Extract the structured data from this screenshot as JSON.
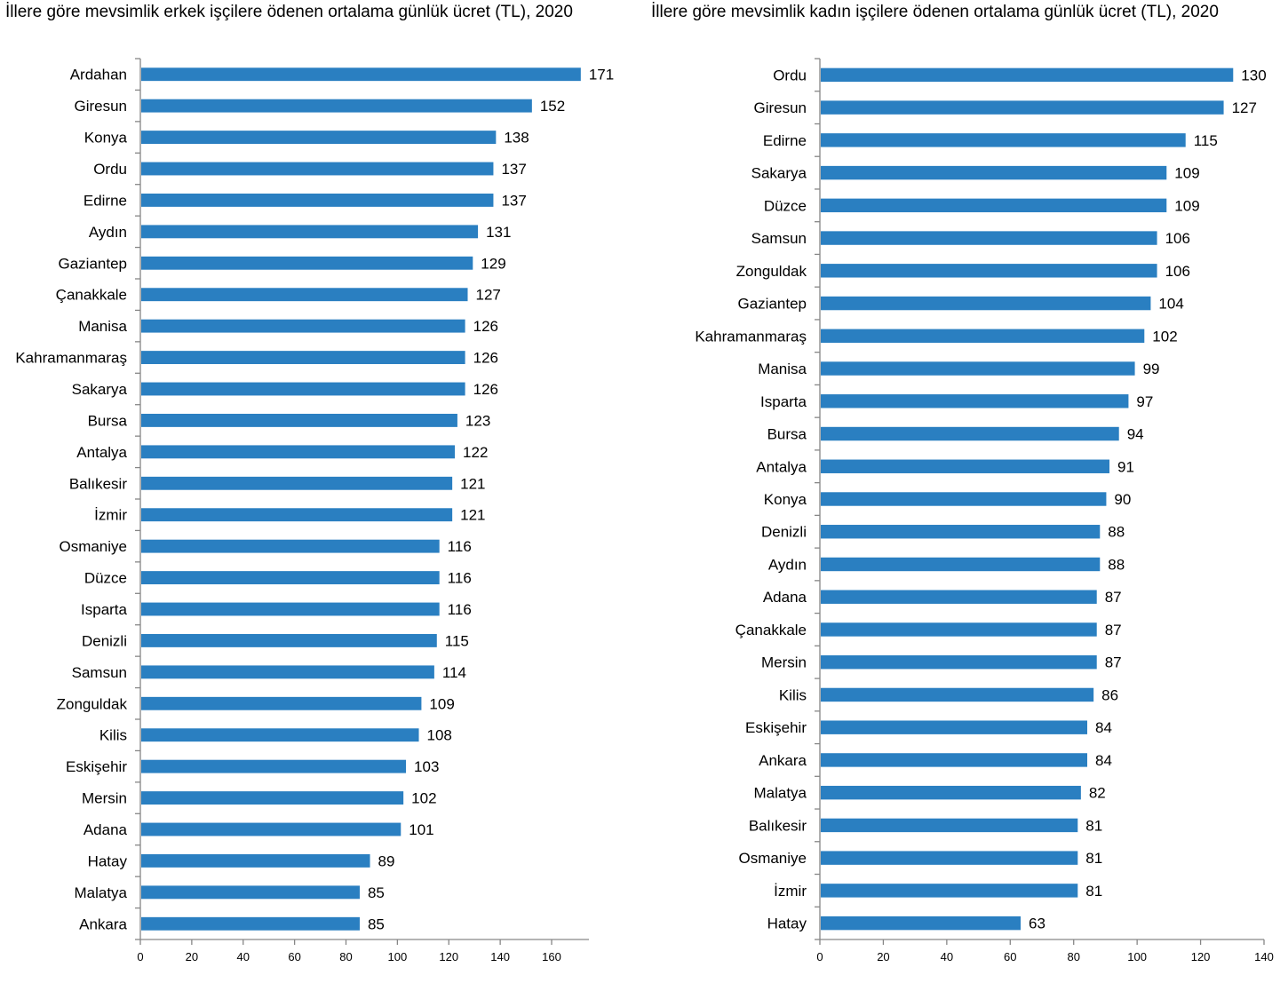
{
  "chart_data": [
    {
      "type": "bar",
      "orientation": "horizontal",
      "title": "İllere göre mevsimlik erkek işçilere ödenen ortalama günlük ücret (TL), 2020",
      "xlabel": "",
      "ylabel": "",
      "categories": [
        "Ardahan",
        "Giresun",
        "Konya",
        "Ordu",
        "Edirne",
        "Aydın",
        "Gaziantep",
        "Çanakkale",
        "Manisa",
        "Kahramanmaraş",
        "Sakarya",
        "Bursa",
        "Antalya",
        "Balıkesir",
        "İzmir",
        "Osmaniye",
        "Düzce",
        "Isparta",
        "Denizli",
        "Samsun",
        "Zonguldak",
        "Kilis",
        "Eskişehir",
        "Mersin",
        "Adana",
        "Hatay",
        "Malatya",
        "Ankara"
      ],
      "values": [
        171,
        152,
        138,
        137,
        137,
        131,
        129,
        127,
        126,
        126,
        126,
        123,
        122,
        121,
        121,
        116,
        116,
        116,
        115,
        114,
        109,
        108,
        103,
        102,
        101,
        89,
        85,
        85
      ],
      "xlim": [
        0,
        175
      ],
      "xticks": [
        0,
        20,
        40,
        60,
        80,
        100,
        120,
        140,
        160
      ],
      "color": "#2a7fc1",
      "grid": false,
      "legend": "none",
      "data_labels": true
    },
    {
      "type": "bar",
      "orientation": "horizontal",
      "title": "İllere göre mevsimlik kadın işçilere ödenen ortalama günlük ücret (TL), 2020",
      "xlabel": "",
      "ylabel": "",
      "categories": [
        "Ordu",
        "Giresun",
        "Edirne",
        "Sakarya",
        "Düzce",
        "Samsun",
        "Zonguldak",
        "Gaziantep",
        "Kahramanmaraş",
        "Manisa",
        "Isparta",
        "Bursa",
        "Antalya",
        "Konya",
        "Denizli",
        "Aydın",
        "Adana",
        "Çanakkale",
        "Mersin",
        "Kilis",
        "Eskişehir",
        "Ankara",
        "Malatya",
        "Balıkesir",
        "Osmaniye",
        "İzmir",
        "Hatay"
      ],
      "values": [
        130,
        127,
        115,
        109,
        109,
        106,
        106,
        104,
        102,
        99,
        97,
        94,
        91,
        90,
        88,
        88,
        87,
        87,
        87,
        86,
        84,
        84,
        82,
        81,
        81,
        81,
        63
      ],
      "xlim": [
        0,
        140
      ],
      "xticks": [
        0,
        20,
        40,
        60,
        80,
        100,
        120,
        140
      ],
      "color": "#2a7fc1",
      "grid": false,
      "legend": "none",
      "data_labels": true
    }
  ]
}
